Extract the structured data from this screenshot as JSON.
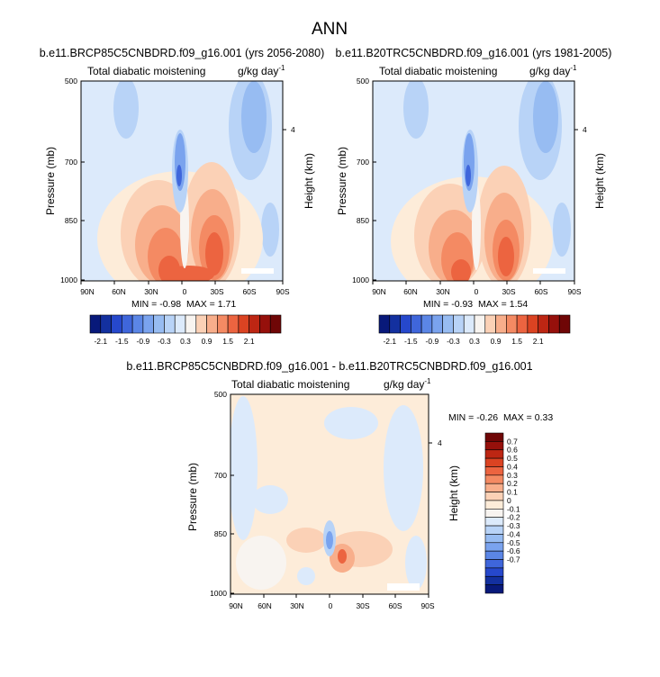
{
  "page": {
    "title": "ANN"
  },
  "colors": {
    "warm": [
      "#fdecd9",
      "#fbd1b6",
      "#f8ae8b",
      "#f48a63",
      "#ec6440",
      "#db4322",
      "#bd2613",
      "#96100b",
      "#6f0606"
    ],
    "cool": [
      "#dceafb",
      "#b8d3f7",
      "#97bcf2",
      "#7aa3ee",
      "#5b86e6",
      "#3f66db",
      "#2648cc",
      "#13309f",
      "#08197a"
    ],
    "neutral": "#f8f4f0"
  },
  "chart_data": [
    {
      "type": "heatmap",
      "title": "b.e11.BRCP85C5CNBDRD.f09_g16.001 (yrs 2056-2080)",
      "subtitle_left": "Total diabatic moistening",
      "units": "g/kg day",
      "units_sup": "-1",
      "ylabel": "Pressure (mb)",
      "ylabel_right": "Height (km)",
      "x_ticks": [
        "90N",
        "60N",
        "30N",
        "0",
        "30S",
        "60S",
        "90S"
      ],
      "y_ticks": [
        "500",
        "700",
        "850",
        "1000"
      ],
      "right_ticks": [
        "4"
      ],
      "min_label": "MIN =",
      "min_value": "-0.98",
      "max_label": "MAX =",
      "max_value": "1.71",
      "colorbar_labels": [
        "-2.1",
        "-1.5",
        "-0.9",
        "-0.3",
        "0.3",
        "0.9",
        "1.5",
        "2.1"
      ],
      "contour_levels": [
        -2.1,
        -1.8,
        -1.5,
        -1.2,
        -0.9,
        -0.6,
        -0.3,
        0,
        0.3,
        0.6,
        0.9,
        1.2,
        1.5,
        1.8,
        2.1
      ],
      "ylim": [
        1000,
        500
      ],
      "xlim": [
        "90N",
        "90S"
      ]
    },
    {
      "type": "heatmap",
      "title": "b.e11.B20TRC5CNBDRD.f09_g16.001 (yrs 1981-2005)",
      "subtitle_left": "Total diabatic moistening",
      "units": "g/kg day",
      "units_sup": "-1",
      "ylabel": "Pressure (mb)",
      "ylabel_right": "Height (km)",
      "x_ticks": [
        "90N",
        "60N",
        "30N",
        "0",
        "30S",
        "60S",
        "90S"
      ],
      "y_ticks": [
        "500",
        "700",
        "850",
        "1000"
      ],
      "right_ticks": [
        "4"
      ],
      "min_label": "MIN =",
      "min_value": "-0.93",
      "max_label": "MAX =",
      "max_value": "1.54",
      "colorbar_labels": [
        "-2.1",
        "-1.5",
        "-0.9",
        "-0.3",
        "0.3",
        "0.9",
        "1.5",
        "2.1"
      ],
      "contour_levels": [
        -2.1,
        -1.8,
        -1.5,
        -1.2,
        -0.9,
        -0.6,
        -0.3,
        0,
        0.3,
        0.6,
        0.9,
        1.2,
        1.5,
        1.8,
        2.1
      ],
      "ylim": [
        1000,
        500
      ],
      "xlim": [
        "90N",
        "90S"
      ]
    },
    {
      "type": "heatmap",
      "title": "b.e11.BRCP85C5CNBDRD.f09_g16.001 - b.e11.B20TRC5CNBDRD.f09_g16.001",
      "subtitle_left": "Total diabatic moistening",
      "units": "g/kg day",
      "units_sup": "-1",
      "ylabel": "Pressure (mb)",
      "ylabel_right": "Height (km)",
      "x_ticks": [
        "90N",
        "60N",
        "30N",
        "0",
        "30S",
        "60S",
        "90S"
      ],
      "y_ticks": [
        "500",
        "700",
        "850",
        "1000"
      ],
      "right_ticks": [
        "4"
      ],
      "min_label": "MIN =",
      "min_value": "-0.26",
      "max_label": "MAX =",
      "max_value": "0.33",
      "colorbar_labels": [
        "0.7",
        "0.6",
        "0.5",
        "0.4",
        "0.3",
        "0.2",
        "0.1",
        "0",
        "-0.1",
        "-0.2",
        "-0.3",
        "-0.4",
        "-0.5",
        "-0.6",
        "-0.7"
      ],
      "ylim": [
        1000,
        500
      ],
      "xlim": [
        "90N",
        "90S"
      ]
    }
  ]
}
